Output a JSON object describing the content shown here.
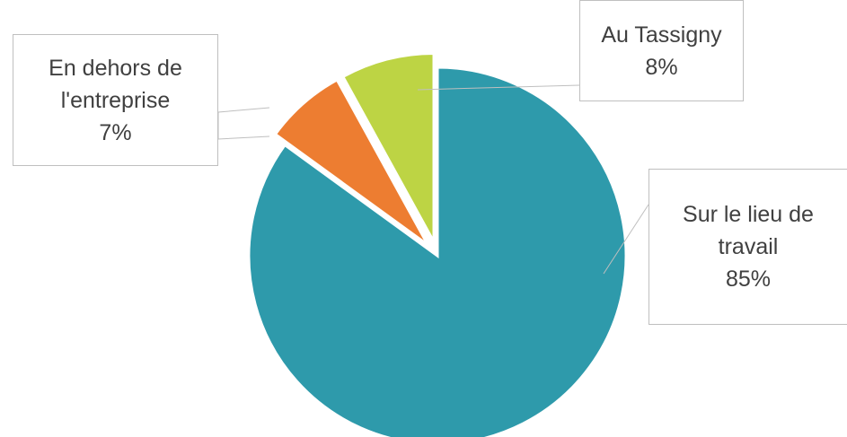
{
  "chart_data": {
    "type": "pie",
    "categories": [
      "Sur le lieu de travail",
      "En dehors de l'entreprise",
      "Au Tassigny"
    ],
    "values": [
      85,
      7,
      8
    ],
    "value_labels": [
      "85%",
      "7%",
      "8%"
    ],
    "colors": [
      "#2e9aab",
      "#ed7d31",
      "#bdd444"
    ]
  }
}
